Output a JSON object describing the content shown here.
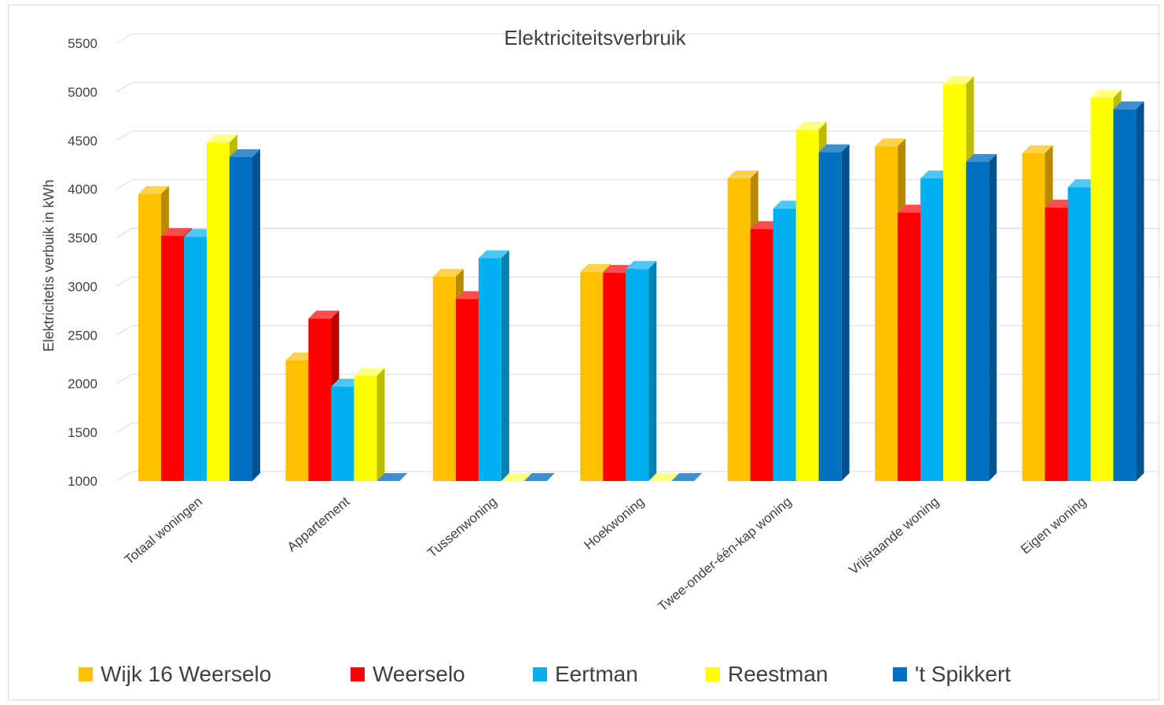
{
  "colors": {
    "series": [
      "#FFC000",
      "#FF0000",
      "#00B0F0",
      "#FFFF00",
      "#0070C0"
    ],
    "series_side": [
      "#B88A00",
      "#B80000",
      "#0082B3",
      "#BDBD00",
      "#005291"
    ],
    "series_top": [
      "#FFD24D",
      "#FF4D4D",
      "#4DC8F5",
      "#FFFF80",
      "#3D8FD0"
    ]
  },
  "chart_data": {
    "type": "bar",
    "title": "Elektriciteitsverbruik",
    "ylabel": "Elektricitetis verbuik in kWh",
    "xlabel": "",
    "ylim": [
      1000,
      5500
    ],
    "yticks": [
      "1000",
      "1500",
      "2000",
      "2500",
      "3000",
      "3500",
      "4000",
      "4500",
      "5000",
      "5500"
    ],
    "categories": [
      "Totaal woningen",
      "Appartement",
      "Tussenwoning",
      "Hoekwoning",
      "Twee-onder-één-kap woning",
      "Vrijstaande woning",
      "Eigen woning"
    ],
    "series": [
      {
        "name": "Wijk 16 Weerselo",
        "values": [
          3950,
          2240,
          3100,
          3150,
          4110,
          4440,
          4370
        ]
      },
      {
        "name": "Weerselo",
        "values": [
          3520,
          2670,
          2870,
          3140,
          3590,
          3760,
          3810
        ]
      },
      {
        "name": "Eertman",
        "values": [
          3510,
          1970,
          3290,
          3180,
          3800,
          4110,
          4020
        ]
      },
      {
        "name": "Reestman",
        "values": [
          4480,
          2080,
          1000,
          1000,
          4610,
          5080,
          4940
        ]
      },
      {
        "name": "'t Spikkert",
        "values": [
          4330,
          1000,
          1000,
          1000,
          4380,
          4280,
          4820
        ]
      }
    ],
    "grid": true,
    "legend_position": "bottom"
  }
}
